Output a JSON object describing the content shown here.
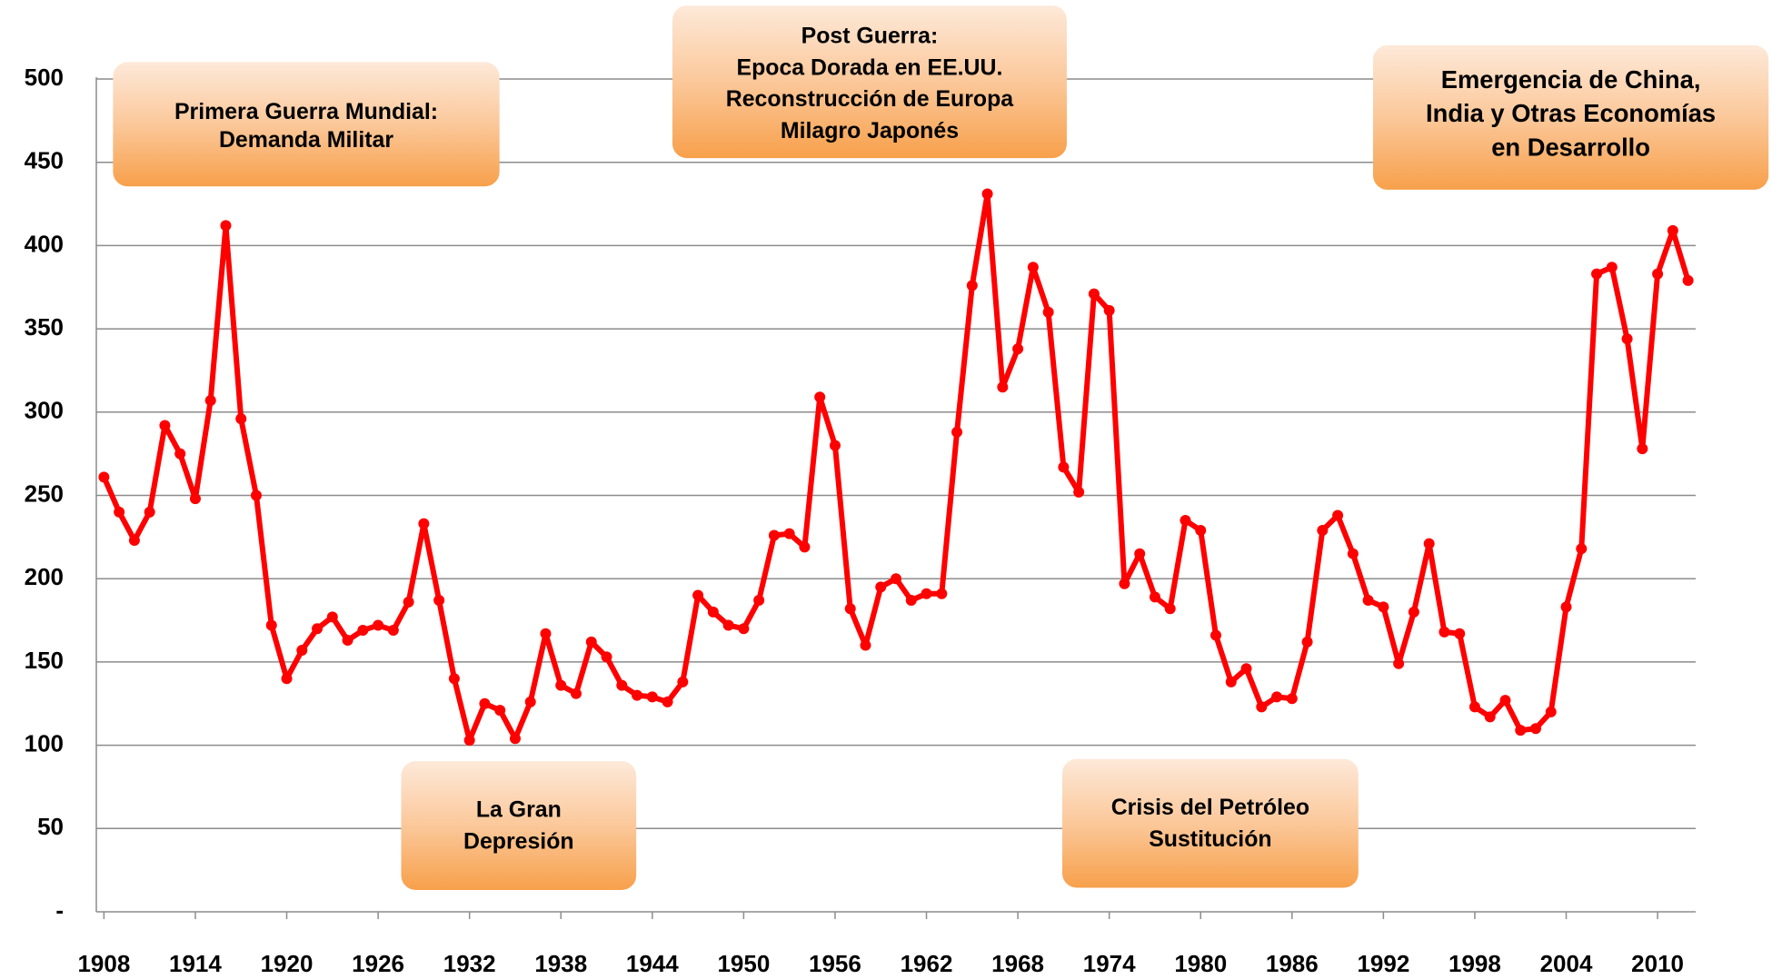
{
  "chart_data": {
    "type": "line",
    "x": [
      1908,
      1909,
      1910,
      1911,
      1912,
      1913,
      1914,
      1915,
      1916,
      1917,
      1918,
      1919,
      1920,
      1921,
      1922,
      1923,
      1924,
      1925,
      1926,
      1927,
      1928,
      1929,
      1930,
      1931,
      1932,
      1933,
      1934,
      1935,
      1936,
      1937,
      1938,
      1939,
      1940,
      1941,
      1942,
      1943,
      1944,
      1945,
      1946,
      1947,
      1948,
      1949,
      1950,
      1951,
      1952,
      1953,
      1954,
      1955,
      1956,
      1957,
      1958,
      1959,
      1960,
      1961,
      1962,
      1963,
      1964,
      1965,
      1966,
      1967,
      1968,
      1969,
      1970,
      1971,
      1972,
      1973,
      1974,
      1975,
      1976,
      1977,
      1978,
      1979,
      1980,
      1981,
      1982,
      1983,
      1984,
      1985,
      1986,
      1987,
      1988,
      1989,
      1990,
      1991,
      1992,
      1993,
      1994,
      1995,
      1996,
      1997,
      1998,
      1999,
      2000,
      2001,
      2002,
      2003,
      2004,
      2005,
      2006,
      2007,
      2008,
      2009,
      2010,
      2011,
      2012
    ],
    "series": [
      {
        "color": "#ff0000",
        "values": [
          261,
          240,
          223,
          240,
          292,
          275,
          248,
          307,
          412,
          296,
          250,
          172,
          140,
          157,
          170,
          177,
          163,
          169,
          172,
          169,
          186,
          233,
          187,
          140,
          103,
          125,
          121,
          104,
          126,
          167,
          136,
          131,
          162,
          153,
          136,
          130,
          129,
          126,
          138,
          190,
          180,
          172,
          170,
          187,
          226,
          227,
          219,
          309,
          280,
          182,
          160,
          195,
          200,
          187,
          191,
          191,
          288,
          376,
          431,
          315,
          338,
          387,
          360,
          267,
          252,
          371,
          361,
          197,
          215,
          189,
          182,
          235,
          229,
          166,
          138,
          146,
          123,
          129,
          128,
          162,
          229,
          238,
          215,
          187,
          183,
          149,
          180,
          221,
          168,
          167,
          123,
          117,
          127,
          109,
          110,
          120,
          183,
          218,
          383,
          387,
          344,
          278,
          383,
          409,
          379
        ]
      }
    ],
    "xlim": [
      1907.5,
      2012.5
    ],
    "xticks": [
      1908,
      1914,
      1920,
      1926,
      1932,
      1938,
      1944,
      1950,
      1956,
      1962,
      1968,
      1974,
      1980,
      1986,
      1992,
      1998,
      2004,
      2010
    ],
    "ylim": [
      0,
      500
    ],
    "yticks": [
      {
        "value": 0,
        "label": "-"
      },
      50,
      100,
      150,
      200,
      250,
      300,
      350,
      400,
      450,
      500
    ],
    "grid": true,
    "annotations": [
      {
        "lines": [
          "Primera Guerra Mundial:",
          "Demanda Militar"
        ]
      },
      {
        "lines": [
          "Post Guerra:",
          "Epoca Dorada en EE.UU.",
          "Reconstrucción de Europa",
          "Milagro Japonés"
        ]
      },
      {
        "lines": [
          "Emergencia de China,",
          "India y Otras Economías",
          "en Desarrollo"
        ]
      },
      {
        "lines": [
          "La Gran",
          "Depresión"
        ]
      },
      {
        "lines": [
          "Crisis del Petróleo",
          "Sustitución"
        ]
      }
    ]
  }
}
